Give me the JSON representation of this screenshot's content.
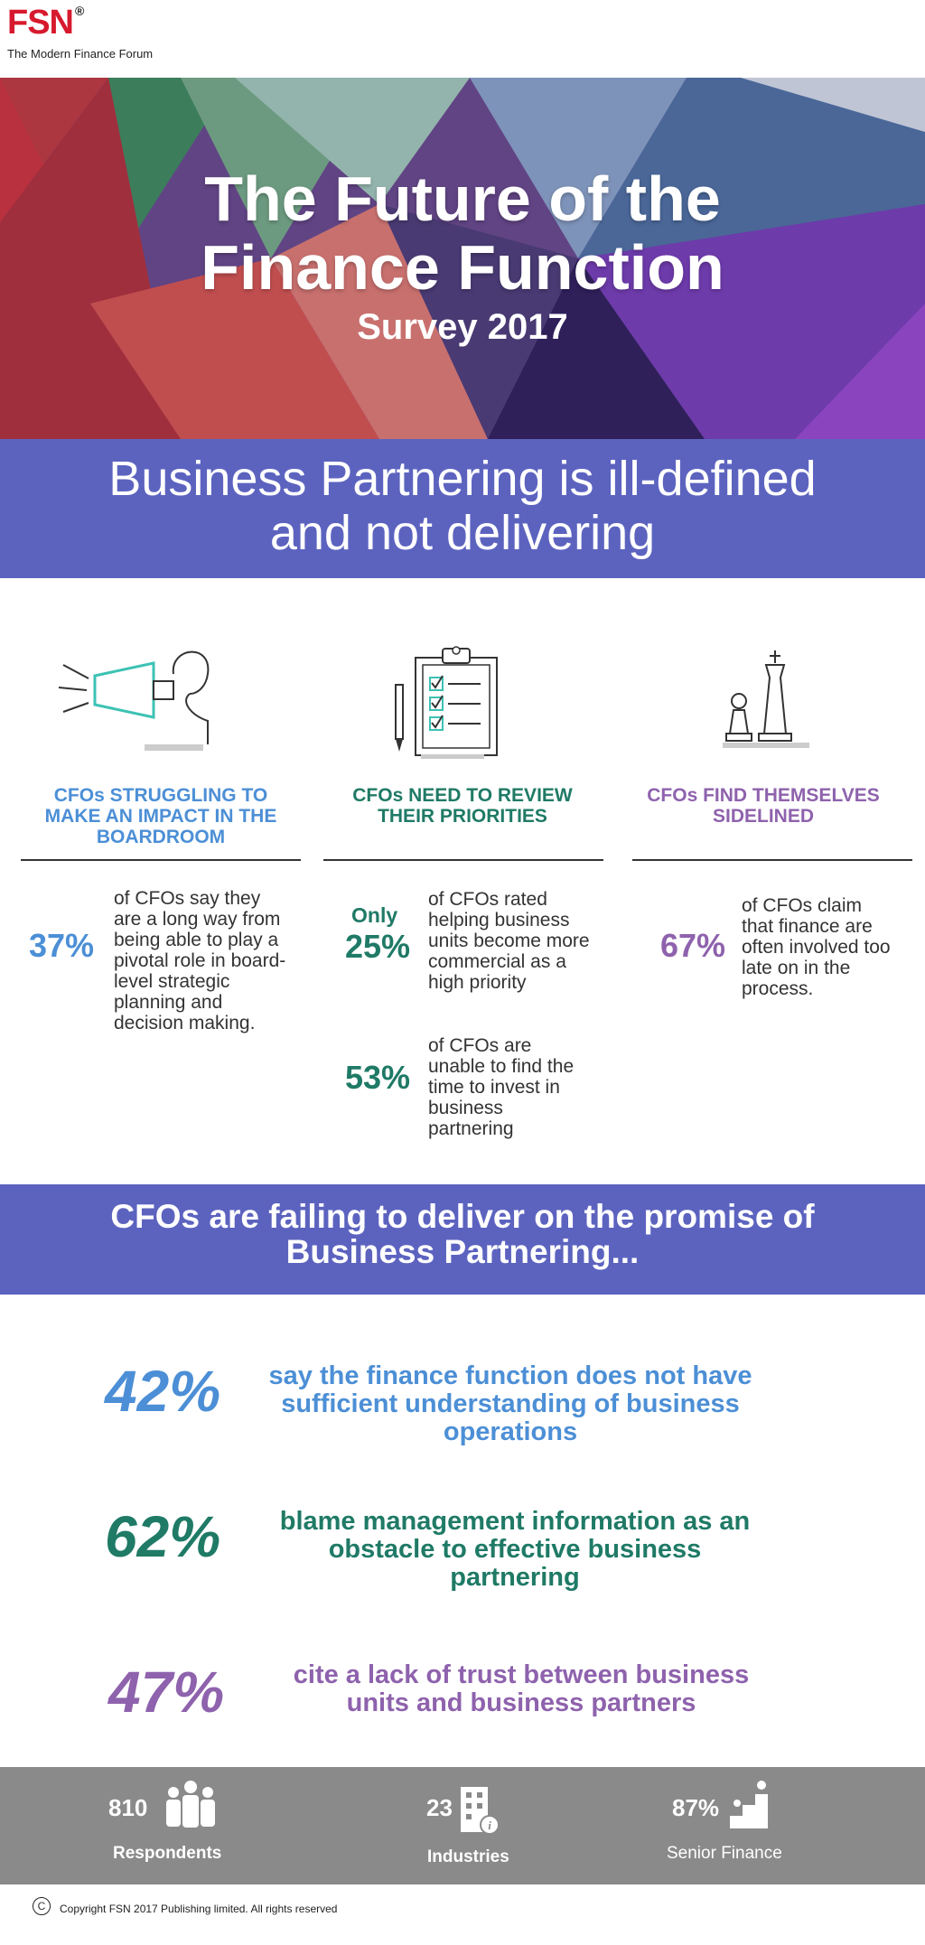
{
  "header": {
    "logo_text": "FSN",
    "logo_mark": "®",
    "tagline": "The Modern Finance Forum",
    "brand_color": "#d7192d"
  },
  "hero": {
    "title_line1": "The Future of the",
    "title_line2": "Finance Function",
    "subtitle": "Survey 2017"
  },
  "banner1": {
    "line1": "Business Partnering is ill-defined",
    "line2": "and not delivering",
    "color": "#5c63bf"
  },
  "columns": [
    {
      "icon": "megaphone-person-icon",
      "title_line1": "CFOs STRUGGLING TO",
      "title_line2": "MAKE AN IMPACT IN THE",
      "title_line3": "BOARDROOM",
      "color": "#4c8fd6",
      "stats": [
        {
          "value": "37%",
          "text": [
            "of CFOs say they",
            "are a long way from",
            "being able to play a",
            "pivotal role in board-",
            "level strategic",
            "planning and",
            "decision making."
          ]
        }
      ]
    },
    {
      "icon": "clipboard-checklist-icon",
      "title_line1": "CFOs NEED TO REVIEW",
      "title_line2": "THEIR PRIORITIES",
      "color": "#1f7a66",
      "stats": [
        {
          "prefix": "Only",
          "value": "25%",
          "text": [
            "of CFOs rated",
            "helping business",
            "units become more",
            "commercial as a",
            "high priority"
          ]
        },
        {
          "value": "53%",
          "text": [
            "of CFOs are",
            "unable to find the",
            "time to invest in",
            "business",
            "partnering"
          ]
        }
      ]
    },
    {
      "icon": "chess-pieces-icon",
      "title_line1": "CFOs FIND THEMSELVES",
      "title_line2": "SIDELINED",
      "color": "#8e62ad",
      "stats": [
        {
          "value": "67%",
          "text": [
            "of CFOs claim",
            "that finance are",
            "often involved too",
            "late on in the",
            "process."
          ]
        }
      ]
    }
  ],
  "banner2": {
    "line1": "CFOs are failing to deliver on the promise of",
    "line2": "Business Partnering..."
  },
  "findings": [
    {
      "value": "42%",
      "text": [
        "say the finance function does not have",
        "sufficient understanding of business",
        "operations"
      ],
      "color": "#4c8fd6"
    },
    {
      "value": "62%",
      "text": [
        "blame management information as an",
        "obstacle to effective business",
        "partnering"
      ],
      "color": "#1f7a66"
    },
    {
      "value": "47%",
      "text": [
        "cite a lack of trust between business",
        "units and business partners"
      ],
      "color": "#8e62ad"
    }
  ],
  "footer": {
    "respondents_value": "810",
    "respondents_label": "Respondents",
    "industries_value": "23",
    "industries_label": "Industries",
    "senior_value": "87%",
    "senior_label": "Senior Finance",
    "copyright_symbol": "C",
    "copyright": "Copyright FSN 2017 Publishing limited.  All rights reserved"
  }
}
